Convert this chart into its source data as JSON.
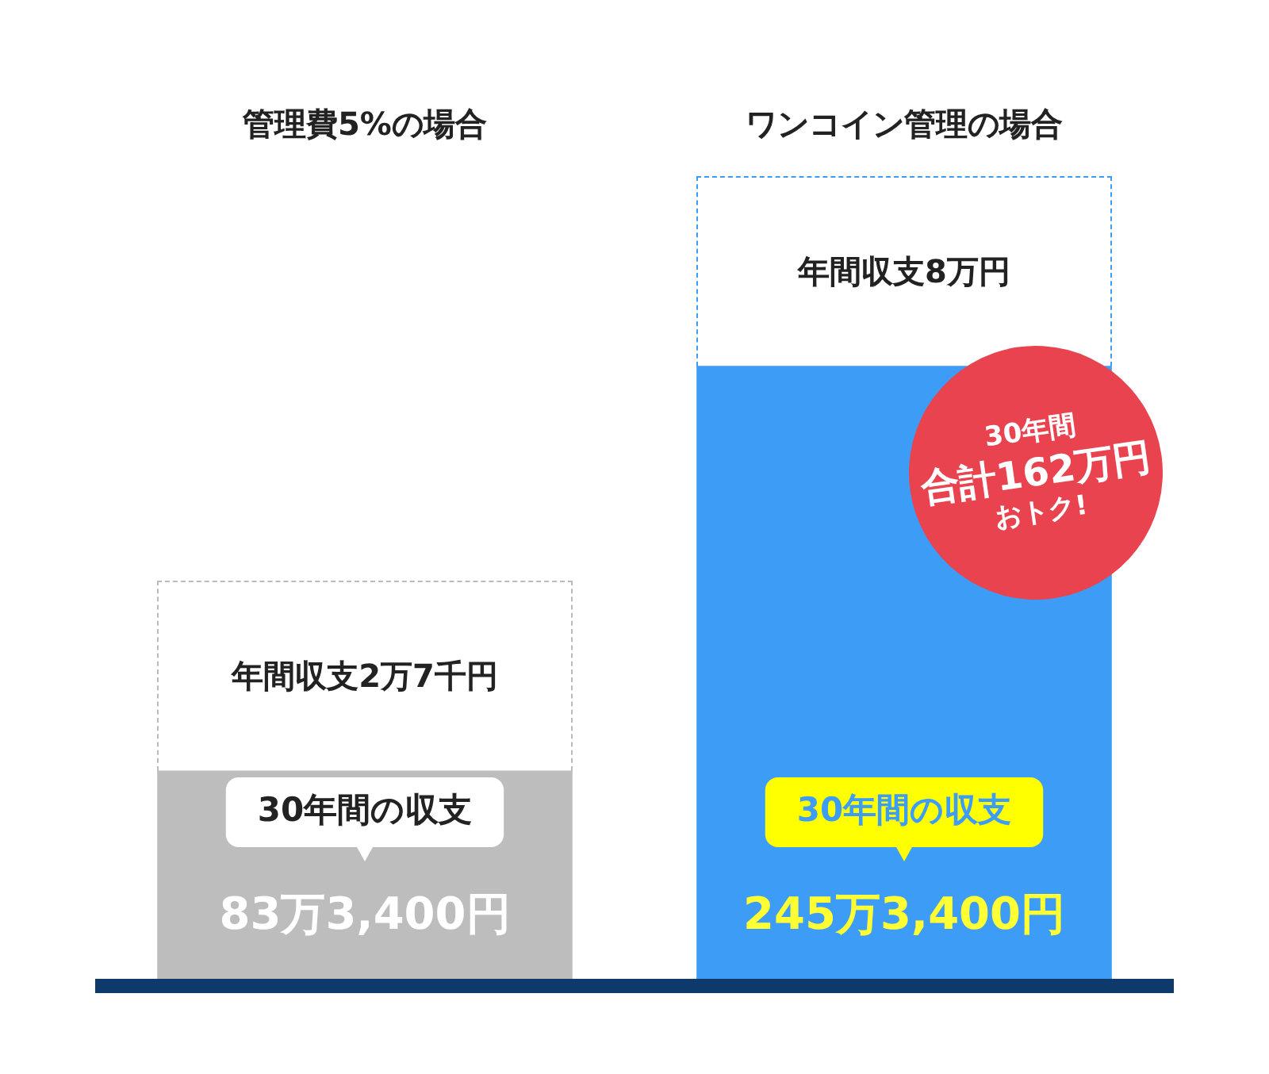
{
  "chart_data": {
    "type": "bar",
    "categories": [
      "管理費5%の場合",
      "ワンコイン管理の場合"
    ],
    "series": [
      {
        "colors": [
          "#bdbdbd",
          "#3d9cf5"
        ],
        "values": [
          83.34,
          245.34
        ],
        "value_labels": [
          "83万3,400円",
          "245万3,400円"
        ]
      }
    ],
    "annotations": [
      "年間収支2万7千円",
      "年間収支8万円",
      "30年間の収支",
      "30年間の収支",
      "30年間",
      "合計162万円",
      "おトク!"
    ],
    "tick_labels": "x",
    "grid": false,
    "legend": false
  }
}
